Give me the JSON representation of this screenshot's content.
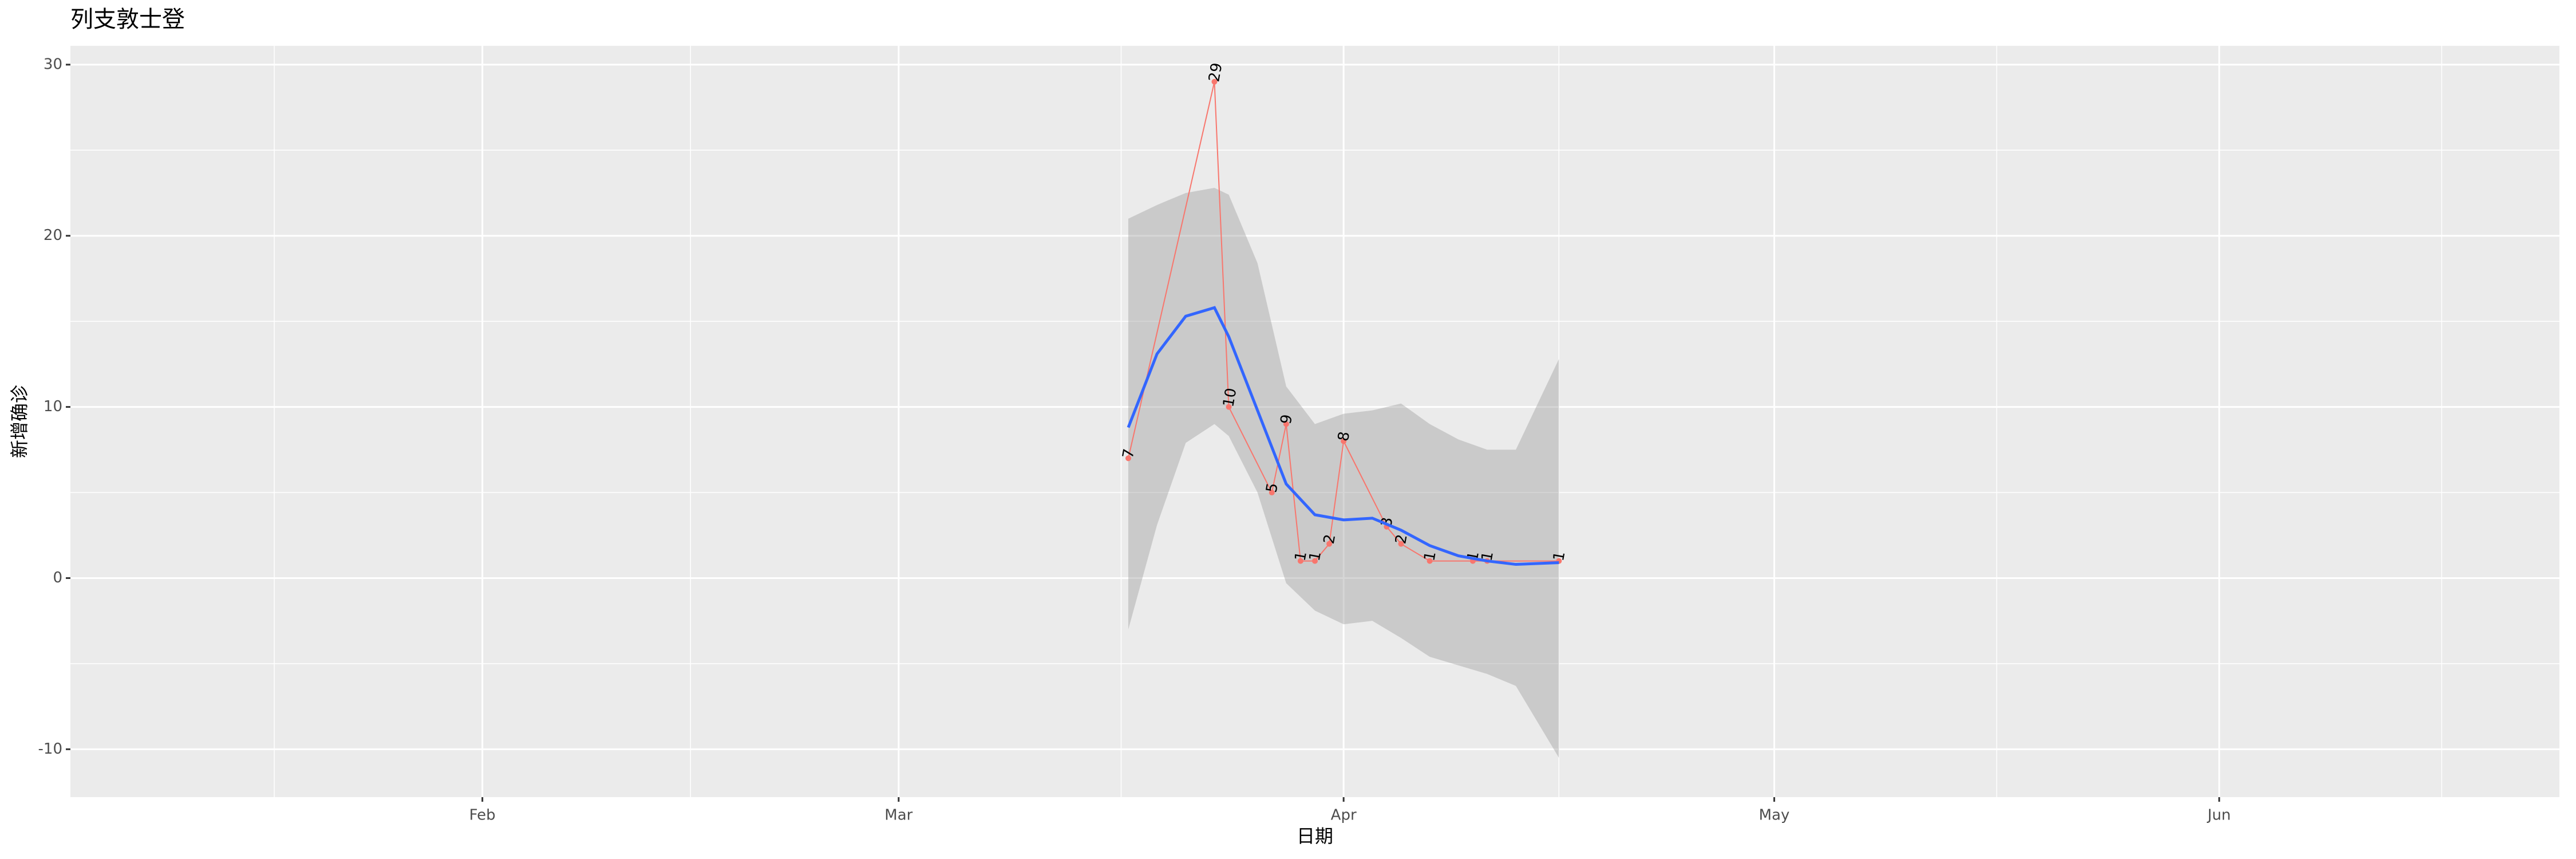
{
  "chart_data": {
    "type": "line",
    "title": "列支敦士登",
    "x_label": "日期",
    "y_label": "新增确诊",
    "xlim": [
      3.3,
      176.7
    ],
    "xticks": [
      {
        "value": 32,
        "label": "Feb"
      },
      {
        "value": 61,
        "label": "Mar"
      },
      {
        "value": 92,
        "label": "Apr"
      },
      {
        "value": 122,
        "label": "May"
      },
      {
        "value": 153,
        "label": "Jun"
      }
    ],
    "ylim": [
      -12.8,
      31.1
    ],
    "yticks": [
      -10,
      0,
      10,
      20,
      30
    ],
    "grid": true,
    "series": [
      {
        "color": "#F8766D",
        "x": [
          77,
          83,
          84,
          87,
          88,
          89,
          90,
          91,
          92,
          95,
          96,
          98,
          101,
          102,
          107
        ],
        "values": [
          7,
          29,
          10,
          5,
          9,
          1,
          1,
          2,
          8,
          3,
          2,
          1,
          1,
          1,
          1
        ]
      }
    ],
    "smooth": {
      "color": "#3366FF",
      "band_color": "#999999",
      "x": [
        77,
        79,
        81,
        83,
        84,
        86,
        88,
        90,
        92,
        94,
        96,
        98,
        100,
        102,
        104,
        107
      ],
      "values": [
        8.8,
        13.1,
        15.3,
        15.8,
        14.1,
        9.8,
        5.5,
        3.7,
        3.4,
        3.5,
        2.8,
        1.9,
        1.3,
        1.0,
        0.8,
        0.9
      ],
      "lower": [
        -3.0,
        3.1,
        7.9,
        9.0,
        8.3,
        5.0,
        -0.3,
        -1.9,
        -2.7,
        -2.5,
        -3.5,
        -4.6,
        -5.1,
        -5.6,
        -6.3,
        -10.5
      ],
      "upper": [
        21.0,
        21.8,
        22.5,
        22.8,
        22.4,
        18.4,
        11.2,
        9.0,
        9.6,
        9.8,
        10.2,
        9.0,
        8.1,
        7.5,
        7.5,
        12.8
      ]
    }
  }
}
